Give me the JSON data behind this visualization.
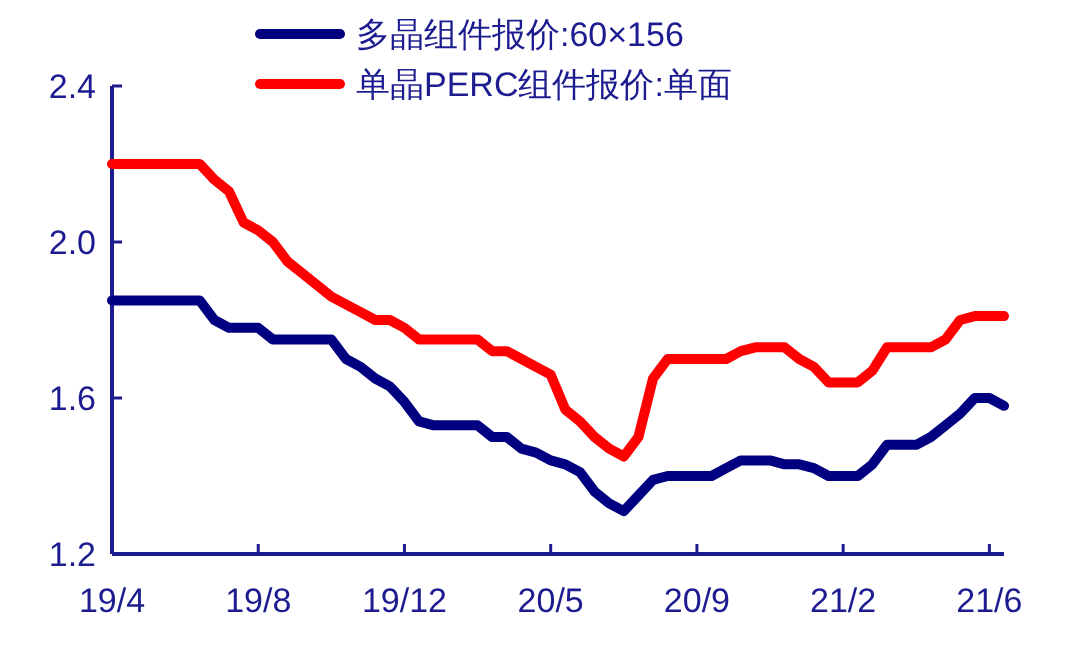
{
  "chart_data": {
    "type": "line",
    "categories": [
      "19/4",
      null,
      null,
      null,
      null,
      null,
      null,
      null,
      null,
      null,
      "19/8",
      null,
      null,
      null,
      null,
      null,
      null,
      null,
      null,
      null,
      "19/12",
      null,
      null,
      null,
      null,
      null,
      null,
      null,
      null,
      null,
      "20/5",
      null,
      null,
      null,
      null,
      null,
      null,
      null,
      null,
      null,
      "20/9",
      null,
      null,
      null,
      null,
      null,
      null,
      null,
      null,
      null,
      "21/2",
      null,
      null,
      null,
      null,
      null,
      null,
      null,
      null,
      null,
      "21/6",
      null
    ],
    "series": [
      {
        "name": "多晶组件报价:60×156",
        "color": "#000080",
        "values": [
          1.85,
          1.85,
          1.85,
          1.85,
          1.85,
          1.85,
          1.85,
          1.8,
          1.78,
          1.78,
          1.78,
          1.75,
          1.75,
          1.75,
          1.75,
          1.75,
          1.7,
          1.68,
          1.65,
          1.63,
          1.59,
          1.54,
          1.53,
          1.53,
          1.53,
          1.53,
          1.5,
          1.5,
          1.47,
          1.46,
          1.44,
          1.43,
          1.41,
          1.36,
          1.33,
          1.31,
          1.35,
          1.39,
          1.4,
          1.4,
          1.4,
          1.4,
          1.42,
          1.44,
          1.44,
          1.44,
          1.43,
          1.43,
          1.42,
          1.4,
          1.4,
          1.4,
          1.43,
          1.48,
          1.48,
          1.48,
          1.5,
          1.53,
          1.56,
          1.6,
          1.6,
          1.58
        ]
      },
      {
        "name": "单晶PERC组件报价:单面",
        "color": "#ff0000",
        "values": [
          2.2,
          2.2,
          2.2,
          2.2,
          2.2,
          2.2,
          2.2,
          2.16,
          2.13,
          2.05,
          2.03,
          2.0,
          1.95,
          1.92,
          1.89,
          1.86,
          1.84,
          1.82,
          1.8,
          1.8,
          1.78,
          1.75,
          1.75,
          1.75,
          1.75,
          1.75,
          1.72,
          1.72,
          1.7,
          1.68,
          1.66,
          1.57,
          1.54,
          1.5,
          1.47,
          1.45,
          1.5,
          1.65,
          1.7,
          1.7,
          1.7,
          1.7,
          1.7,
          1.72,
          1.73,
          1.73,
          1.73,
          1.7,
          1.68,
          1.64,
          1.64,
          1.64,
          1.67,
          1.73,
          1.73,
          1.73,
          1.73,
          1.75,
          1.8,
          1.81,
          1.81,
          1.81
        ]
      }
    ],
    "ylim": [
      1.2,
      2.4
    ],
    "yticks": [
      {
        "value": 1.2,
        "label": "1.2"
      },
      1.6,
      {
        "value": 2.0,
        "label": "2.0"
      },
      2.4
    ],
    "grid": false,
    "legend": "top",
    "marker": "none",
    "line_style": "solid"
  }
}
